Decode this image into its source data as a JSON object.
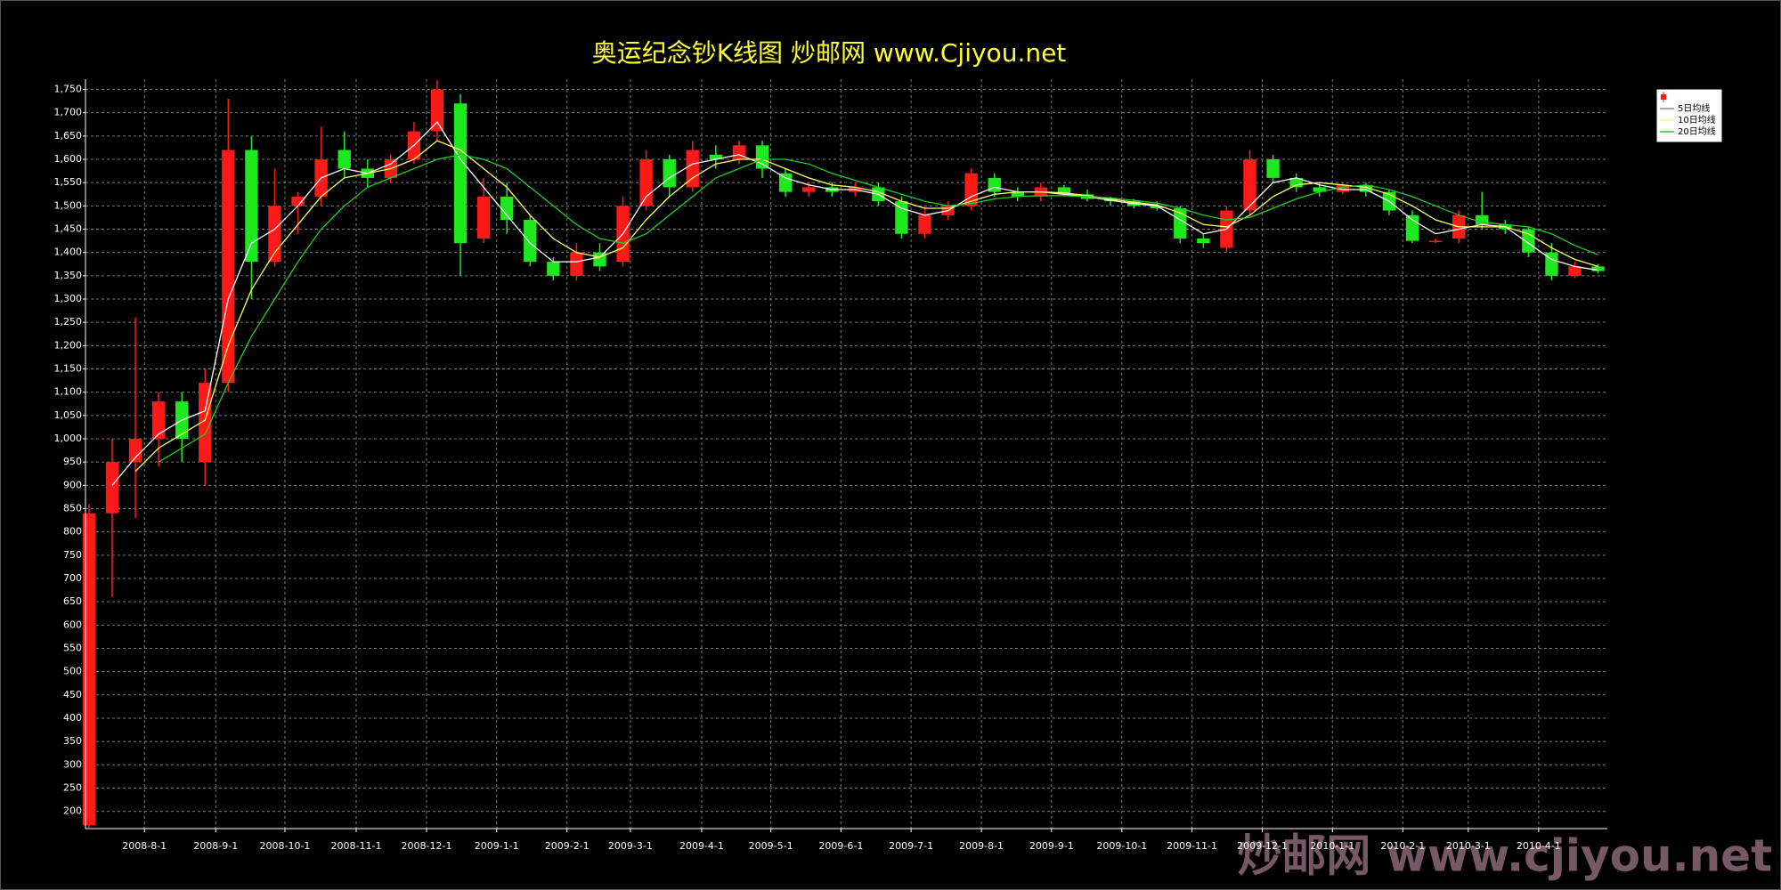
{
  "chart_data": {
    "type": "candlestick",
    "title": "奥运纪念钞K线图  炒邮网 www.Cjiyou.net",
    "watermark": "炒邮网 www.cjiyou.net",
    "up_color": "#ff1a1a",
    "down_color": "#1ee81e",
    "grid": true,
    "ylim": [
      163,
      1772
    ],
    "yticks": [
      200,
      250,
      300,
      350,
      400,
      450,
      500,
      550,
      600,
      650,
      700,
      750,
      800,
      850,
      900,
      950,
      {
        "value": 1000,
        "label": "1,000"
      },
      {
        "value": 1050,
        "label": "1,050"
      },
      {
        "value": 1100,
        "label": "1,100"
      },
      {
        "value": 1150,
        "label": "1,150"
      },
      {
        "value": 1200,
        "label": "1,200"
      },
      {
        "value": 1250,
        "label": "1,250"
      },
      {
        "value": 1300,
        "label": "1,300"
      },
      {
        "value": 1350,
        "label": "1,350"
      },
      {
        "value": 1400,
        "label": "1,400"
      },
      {
        "value": 1450,
        "label": "1,450"
      },
      {
        "value": 1500,
        "label": "1,500"
      },
      {
        "value": 1550,
        "label": "1,550"
      },
      {
        "value": 1600,
        "label": "1,600"
      },
      {
        "value": 1650,
        "label": "1,650"
      },
      {
        "value": 1700,
        "label": "1,700"
      },
      {
        "value": 1750,
        "label": "1,750"
      }
    ],
    "xlim": [
      -0.15,
      65.4
    ],
    "xticks": [
      {
        "value": 2.39,
        "label": "2008-8-1"
      },
      {
        "value": 5.46,
        "label": "2008-9-1"
      },
      {
        "value": 8.44,
        "label": "2008-10-1"
      },
      {
        "value": 11.51,
        "label": "2008-11-1"
      },
      {
        "value": 14.54,
        "label": "2008-12-1"
      },
      {
        "value": 17.56,
        "label": "2009-1-1"
      },
      {
        "value": 20.59,
        "label": "2009-2-1"
      },
      {
        "value": 23.32,
        "label": "2009-3-1"
      },
      {
        "value": 26.39,
        "label": "2009-4-1"
      },
      {
        "value": 29.37,
        "label": "2009-5-1"
      },
      {
        "value": 32.39,
        "label": "2009-6-1"
      },
      {
        "value": 35.41,
        "label": "2009-7-1"
      },
      {
        "value": 38.44,
        "label": "2009-8-1"
      },
      {
        "value": 41.46,
        "label": "2009-9-1"
      },
      {
        "value": 44.49,
        "label": "2009-10-1"
      },
      {
        "value": 47.51,
        "label": "2009-11-1"
      },
      {
        "value": 50.54,
        "label": "2009-12-1"
      },
      {
        "value": 53.56,
        "label": "2010-1-1"
      },
      {
        "value": 56.59,
        "label": "2010-2-1"
      },
      {
        "value": 59.41,
        "label": "2010-3-1"
      },
      {
        "value": 62.44,
        "label": "2010-4-1"
      }
    ],
    "open": [
      170,
      840,
      950,
      1000,
      1080,
      950,
      1120,
      1620,
      1380,
      1500,
      1520,
      1620,
      1580,
      1560,
      1600,
      1660,
      1720,
      1430,
      1520,
      1470,
      1380,
      1350,
      1400,
      1380,
      1500,
      1600,
      1540,
      1610,
      1600,
      1630,
      1570,
      1530,
      1540,
      1530,
      1540,
      1510,
      1440,
      1480,
      1500,
      1560,
      1530,
      1520,
      1540,
      1525,
      1515,
      1510,
      1500,
      1495,
      1430,
      1410,
      1490,
      1600,
      1560,
      1540,
      1530,
      1545,
      1530,
      1480,
      1425,
      1430,
      1480,
      1460,
      1450,
      1400,
      1350,
      1370
    ],
    "high": [
      860,
      1000,
      1260,
      1100,
      1100,
      1150,
      1730,
      1650,
      1580,
      1530,
      1670,
      1660,
      1600,
      1610,
      1680,
      1770,
      1740,
      1560,
      1550,
      1480,
      1390,
      1420,
      1420,
      1520,
      1620,
      1610,
      1640,
      1630,
      1640,
      1640,
      1580,
      1550,
      1550,
      1550,
      1550,
      1520,
      1500,
      1510,
      1580,
      1570,
      1540,
      1550,
      1545,
      1535,
      1520,
      1515,
      1510,
      1500,
      1440,
      1500,
      1620,
      1610,
      1570,
      1550,
      1550,
      1550,
      1535,
      1490,
      1430,
      1490,
      1530,
      1470,
      1455,
      1420,
      1380,
      1375
    ],
    "low": [
      165,
      660,
      830,
      940,
      950,
      900,
      1100,
      1300,
      1370,
      1440,
      1500,
      1560,
      1540,
      1550,
      1590,
      1640,
      1350,
      1420,
      1440,
      1370,
      1340,
      1340,
      1360,
      1370,
      1490,
      1520,
      1530,
      1580,
      1590,
      1560,
      1520,
      1520,
      1520,
      1520,
      1500,
      1430,
      1430,
      1470,
      1490,
      1520,
      1510,
      1510,
      1520,
      1510,
      1500,
      1495,
      1490,
      1420,
      1410,
      1400,
      1480,
      1550,
      1530,
      1520,
      1525,
      1520,
      1480,
      1420,
      1420,
      1420,
      1450,
      1440,
      1390,
      1340,
      1345,
      1355
    ],
    "close": [
      840,
      950,
      1000,
      1080,
      1000,
      1120,
      1620,
      1380,
      1500,
      1520,
      1600,
      1580,
      1560,
      1600,
      1660,
      1750,
      1420,
      1520,
      1470,
      1380,
      1350,
      1400,
      1370,
      1500,
      1600,
      1540,
      1620,
      1600,
      1630,
      1580,
      1530,
      1540,
      1530,
      1540,
      1510,
      1440,
      1480,
      1500,
      1570,
      1530,
      1520,
      1540,
      1525,
      1515,
      1510,
      1500,
      1495,
      1430,
      1420,
      1490,
      1600,
      1560,
      1540,
      1530,
      1545,
      1530,
      1490,
      1425,
      1425,
      1480,
      1460,
      1450,
      1400,
      1350,
      1370,
      1360
    ],
    "series": [
      {
        "name": "5日均线",
        "color": "#ffffff",
        "values": [
          null,
          900,
          960,
          1010,
          1040,
          1060,
          1300,
          1420,
          1450,
          1500,
          1560,
          1580,
          1570,
          1590,
          1630,
          1680,
          1600,
          1540,
          1480,
          1420,
          1380,
          1380,
          1390,
          1440,
          1520,
          1560,
          1590,
          1600,
          1610,
          1590,
          1560,
          1545,
          1535,
          1535,
          1525,
          1495,
          1480,
          1490,
          1520,
          1540,
          1530,
          1530,
          1525,
          1520,
          1512,
          1505,
          1500,
          1470,
          1440,
          1450,
          1500,
          1550,
          1560,
          1545,
          1535,
          1535,
          1510,
          1470,
          1440,
          1450,
          1460,
          1455,
          1420,
          1385,
          1370,
          1362
        ]
      },
      {
        "name": "10日均线",
        "color": "#ffff66",
        "values": [
          null,
          null,
          930,
          980,
          1010,
          1040,
          1200,
          1320,
          1400,
          1460,
          1520,
          1560,
          1570,
          1580,
          1600,
          1640,
          1620,
          1580,
          1540,
          1480,
          1430,
          1400,
          1390,
          1410,
          1470,
          1520,
          1560,
          1590,
          1600,
          1600,
          1580,
          1560,
          1545,
          1540,
          1530,
          1510,
          1495,
          1495,
          1510,
          1525,
          1530,
          1530,
          1528,
          1522,
          1515,
          1508,
          1502,
          1485,
          1460,
          1455,
          1480,
          1520,
          1545,
          1550,
          1545,
          1540,
          1525,
          1500,
          1470,
          1455,
          1455,
          1455,
          1440,
          1410,
          1385,
          1370
        ]
      },
      {
        "name": "20日均线",
        "color": "#22cc22",
        "values": [
          null,
          null,
          null,
          950,
          980,
          1010,
          1120,
          1220,
          1300,
          1380,
          1450,
          1500,
          1540,
          1560,
          1580,
          1600,
          1610,
          1600,
          1580,
          1540,
          1500,
          1460,
          1430,
          1420,
          1440,
          1480,
          1520,
          1560,
          1580,
          1600,
          1600,
          1590,
          1570,
          1555,
          1540,
          1525,
          1510,
          1500,
          1505,
          1515,
          1520,
          1522,
          1522,
          1520,
          1517,
          1512,
          1506,
          1495,
          1480,
          1470,
          1475,
          1495,
          1515,
          1530,
          1540,
          1545,
          1535,
          1520,
          1500,
          1480,
          1465,
          1460,
          1455,
          1440,
          1415,
          1395
        ]
      }
    ]
  }
}
